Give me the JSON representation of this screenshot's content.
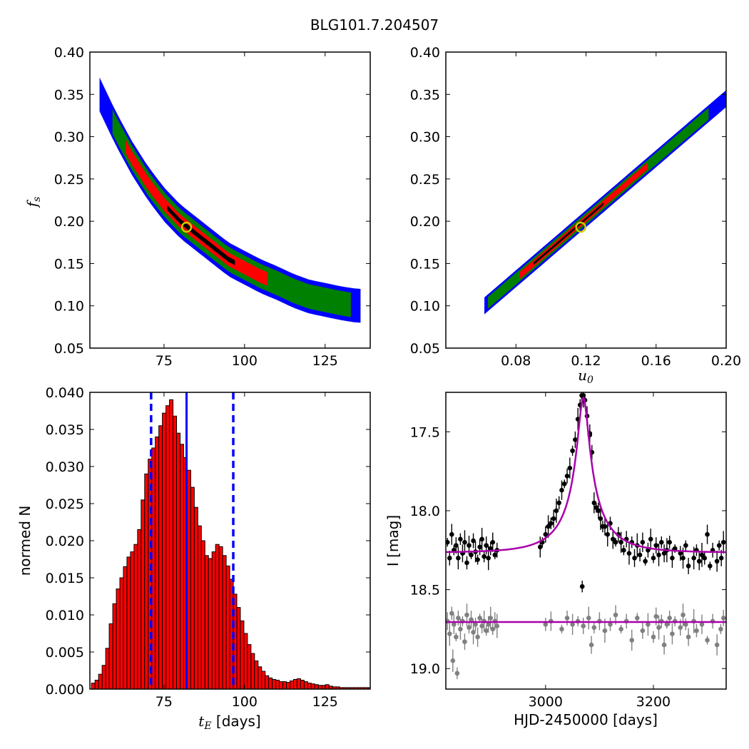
{
  "figure": {
    "title": "BLG101.7.204507"
  },
  "chart_data": [
    {
      "type": "heatmap",
      "xlabel": "",
      "ylabel_main": "f",
      "ylabel_sub": "s",
      "xlim": [
        52,
        139
      ],
      "ylim": [
        0.05,
        0.4
      ],
      "xticks": [
        "75",
        "100",
        "125"
      ],
      "yticks": [
        "0.05",
        "0.10",
        "0.15",
        "0.20",
        "0.25",
        "0.30",
        "0.35",
        "0.40"
      ],
      "colors": {
        "outer": "#0000ff",
        "middle": "#008000",
        "inner": "#ff0000",
        "core": "#000000",
        "best": "#cccc00"
      },
      "best_fit": {
        "x": 82,
        "y": 0.193
      },
      "ridge": [
        [
          55,
          0.35
        ],
        [
          60,
          0.31
        ],
        [
          65,
          0.275
        ],
        [
          70,
          0.245
        ],
        [
          75,
          0.22
        ],
        [
          80,
          0.2
        ],
        [
          85,
          0.185
        ],
        [
          90,
          0.17
        ],
        [
          95,
          0.155
        ],
        [
          100,
          0.145
        ],
        [
          105,
          0.135
        ],
        [
          110,
          0.127
        ],
        [
          115,
          0.118
        ],
        [
          120,
          0.111
        ],
        [
          125,
          0.107
        ],
        [
          130,
          0.103
        ],
        [
          135,
          0.1
        ]
      ],
      "width": {
        "outer": 0.04,
        "middle": 0.029,
        "inner": 0.016,
        "core": 0.006
      },
      "extents": {
        "outer": [
          55,
          136
        ],
        "middle": [
          59,
          133
        ],
        "inner": [
          63,
          107
        ],
        "core": [
          76,
          97
        ]
      }
    },
    {
      "type": "heatmap",
      "xlabel_main": "u",
      "xlabel_sub": "0",
      "ylabel": "",
      "xlim": [
        0.04,
        0.2
      ],
      "ylim": [
        0.05,
        0.4
      ],
      "xticks": [
        "0.08",
        "0.12",
        "0.16",
        "0.20"
      ],
      "yticks": [
        "0.05",
        "0.10",
        "0.15",
        "0.20",
        "0.25",
        "0.30",
        "0.35",
        "0.40"
      ],
      "colors": {
        "outer": "#0000ff",
        "middle": "#008000",
        "inner": "#ff0000",
        "core": "#000000",
        "best": "#cccc00"
      },
      "best_fit": {
        "x": 0.117,
        "y": 0.193
      },
      "ridge": [
        [
          0.062,
          0.1
        ],
        [
          0.2,
          0.345
        ]
      ],
      "width": {
        "outer": 0.02,
        "middle": 0.014,
        "inner": 0.008,
        "core": 0.003
      },
      "extents": {
        "outer": [
          0.062,
          0.2
        ],
        "middle": [
          0.064,
          0.19
        ],
        "inner": [
          0.082,
          0.155
        ],
        "core": [
          0.09,
          0.13
        ]
      }
    },
    {
      "type": "bar",
      "xlabel_main": "t",
      "xlabel_sub": "E",
      "xlabel_suffix": " [days]",
      "ylabel": "normed N",
      "xlim": [
        52,
        139
      ],
      "ylim": [
        0,
        0.04
      ],
      "xticks": [
        "75",
        "100",
        "125"
      ],
      "yticks": [
        "0.000",
        "0.005",
        "0.010",
        "0.015",
        "0.020",
        "0.025",
        "0.030",
        "0.035",
        "0.040"
      ],
      "bin_start": 52.5,
      "bin_width": 1.1,
      "values": [
        0.0008,
        0.0012,
        0.002,
        0.0032,
        0.0055,
        0.0088,
        0.0115,
        0.0135,
        0.015,
        0.0165,
        0.0178,
        0.0185,
        0.0195,
        0.0215,
        0.0255,
        0.029,
        0.031,
        0.0325,
        0.034,
        0.0355,
        0.0372,
        0.0382,
        0.039,
        0.0368,
        0.0345,
        0.033,
        0.0312,
        0.0295,
        0.0272,
        0.0245,
        0.022,
        0.02,
        0.018,
        0.0176,
        0.0185,
        0.0195,
        0.0192,
        0.018,
        0.0166,
        0.0148,
        0.0128,
        0.011,
        0.0092,
        0.0075,
        0.006,
        0.0048,
        0.0038,
        0.003,
        0.0024,
        0.0018,
        0.0015,
        0.0013,
        0.0012,
        0.001,
        0.001,
        0.0009,
        0.0011,
        0.0013,
        0.0014,
        0.0012,
        0.001,
        0.0008,
        0.0007,
        0.0006,
        0.0005,
        0.0005,
        0.0006,
        0.0004,
        0.0003,
        0.0003,
        0.0002,
        0.0002,
        0.0002,
        0.0002,
        0.0002,
        0.0002,
        0.0002,
        0.0002,
        0.0002
      ],
      "bar_color": "#ff0000",
      "median_line": {
        "x": 82,
        "color": "#0000ff"
      },
      "dashed_lines": {
        "x": [
          71,
          96.5
        ],
        "color": "#0000ff"
      }
    },
    {
      "type": "scatter",
      "xlabel": "HJD-2450000 [days]",
      "ylabel": "I [mag]",
      "xlim": [
        2815,
        3335
      ],
      "ylim": [
        19.13,
        17.25
      ],
      "xticks": [
        "3000",
        "3200"
      ],
      "yticks": [
        "17.5",
        "18.0",
        "18.5",
        "19.0"
      ],
      "model_color": "#aa00aa",
      "model": {
        "t0": 3070,
        "u0": 0.117,
        "tE": 82,
        "fs": 0.193,
        "baseline": 18.265
      },
      "residual_baseline": 18.705,
      "series": [
        {
          "name": "",
          "color": "#000000",
          "points": [
            [
              2818,
              18.2
            ],
            [
              2822,
              18.3
            ],
            [
              2826,
              18.15
            ],
            [
              2830,
              18.25
            ],
            [
              2834,
              18.22
            ],
            [
              2838,
              18.3
            ],
            [
              2842,
              18.18
            ],
            [
              2846,
              18.27
            ],
            [
              2850,
              18.2
            ],
            [
              2854,
              18.33
            ],
            [
              2858,
              18.22
            ],
            [
              2862,
              18.28
            ],
            [
              2866,
              18.19
            ],
            [
              2870,
              18.26
            ],
            [
              2874,
              18.31
            ],
            [
              2878,
              18.23
            ],
            [
              2882,
              18.18
            ],
            [
              2886,
              18.29
            ],
            [
              2890,
              18.22
            ],
            [
              2894,
              18.3
            ],
            [
              2898,
              18.24
            ],
            [
              2902,
              18.2
            ],
            [
              2906,
              18.28
            ],
            [
              2910,
              18.25
            ],
            [
              2990,
              18.23
            ],
            [
              2994,
              18.2
            ],
            [
              3000,
              18.15
            ],
            [
              3005,
              18.1
            ],
            [
              3010,
              18.08
            ],
            [
              3015,
              18.05
            ],
            [
              3020,
              18.0
            ],
            [
              3025,
              17.95
            ],
            [
              3030,
              17.87
            ],
            [
              3035,
              17.83
            ],
            [
              3040,
              17.78
            ],
            [
              3045,
              17.73
            ],
            [
              3050,
              17.62
            ],
            [
              3055,
              17.55
            ],
            [
              3060,
              17.42
            ],
            [
              3064,
              17.33
            ],
            [
              3067,
              17.27
            ],
            [
              3070,
              17.27
            ],
            [
              3073,
              17.3
            ],
            [
              3077,
              17.4
            ],
            [
              3082,
              17.52
            ],
            [
              3086,
              17.63
            ],
            [
              3090,
              17.95
            ],
            [
              3094,
              17.98
            ],
            [
              3098,
              18.0
            ],
            [
              3102,
              18.05
            ],
            [
              3106,
              18.1
            ],
            [
              3110,
              18.1
            ],
            [
              3115,
              18.15
            ],
            [
              3120,
              18.08
            ],
            [
              3125,
              18.18
            ],
            [
              3130,
              18.2
            ],
            [
              3135,
              18.15
            ],
            [
              3140,
              18.2
            ],
            [
              3145,
              18.25
            ],
            [
              3150,
              18.18
            ],
            [
              3155,
              18.27
            ],
            [
              3160,
              18.2
            ],
            [
              3165,
              18.3
            ],
            [
              3170,
              18.22
            ],
            [
              3175,
              18.28
            ],
            [
              3180,
              18.2
            ],
            [
              3185,
              18.32
            ],
            [
              3190,
              18.25
            ],
            [
              3195,
              18.18
            ],
            [
              3200,
              18.3
            ],
            [
              3205,
              18.22
            ],
            [
              3210,
              18.28
            ],
            [
              3215,
              18.2
            ],
            [
              3220,
              18.27
            ],
            [
              3225,
              18.25
            ],
            [
              3230,
              18.2
            ],
            [
              3235,
              18.3
            ],
            [
              3240,
              18.24
            ],
            [
              3250,
              18.27
            ],
            [
              3255,
              18.3
            ],
            [
              3260,
              18.22
            ],
            [
              3265,
              18.35
            ],
            [
              3275,
              18.3
            ],
            [
              3280,
              18.25
            ],
            [
              3285,
              18.32
            ],
            [
              3290,
              18.28
            ],
            [
              3295,
              18.3
            ],
            [
              3300,
              18.15
            ],
            [
              3305,
              18.35
            ],
            [
              3310,
              18.25
            ],
            [
              3318,
              18.32
            ],
            [
              3322,
              18.22
            ],
            [
              3326,
              18.3
            ],
            [
              3330,
              18.2
            ]
          ],
          "outliers": [
            [
              3068,
              18.48
            ],
            [
              3082,
              17.51
            ]
          ]
        },
        {
          "name": "",
          "color": "#808080",
          "points": [
            [
              2818,
              18.7
            ],
            [
              2822,
              18.78
            ],
            [
              2826,
              18.65
            ],
            [
              2830,
              18.72
            ],
            [
              2834,
              18.8
            ],
            [
              2838,
              18.68
            ],
            [
              2842,
              18.75
            ],
            [
              2846,
              18.7
            ],
            [
              2850,
              18.83
            ],
            [
              2854,
              18.66
            ],
            [
              2858,
              18.74
            ],
            [
              2862,
              18.69
            ],
            [
              2866,
              18.77
            ],
            [
              2870,
              18.72
            ],
            [
              2874,
              18.8
            ],
            [
              2878,
              18.68
            ],
            [
              2882,
              18.73
            ],
            [
              2886,
              18.7
            ],
            [
              2890,
              18.76
            ],
            [
              2894,
              18.72
            ],
            [
              2898,
              18.68
            ],
            [
              2902,
              18.75
            ],
            [
              2906,
              18.7
            ],
            [
              2910,
              18.73
            ],
            [
              3000,
              18.72
            ],
            [
              3010,
              18.7
            ],
            [
              3030,
              18.75
            ],
            [
              3040,
              18.68
            ],
            [
              3050,
              18.72
            ],
            [
              3060,
              18.7
            ],
            [
              3070,
              18.73
            ],
            [
              3080,
              18.68
            ],
            [
              3090,
              18.74
            ],
            [
              3100,
              18.7
            ],
            [
              3110,
              18.76
            ],
            [
              3120,
              18.72
            ],
            [
              3130,
              18.66
            ],
            [
              3140,
              18.75
            ],
            [
              3150,
              18.7
            ],
            [
              3160,
              18.82
            ],
            [
              3170,
              18.68
            ],
            [
              3180,
              18.76
            ],
            [
              3190,
              18.72
            ],
            [
              3200,
              18.8
            ],
            [
              3205,
              18.67
            ],
            [
              3210,
              18.74
            ],
            [
              3215,
              18.7
            ],
            [
              3220,
              18.85
            ],
            [
              3225,
              18.72
            ],
            [
              3230,
              18.68
            ],
            [
              3235,
              18.78
            ],
            [
              3240,
              18.7
            ],
            [
              3250,
              18.74
            ],
            [
              3255,
              18.66
            ],
            [
              3260,
              18.72
            ],
            [
              3265,
              18.8
            ],
            [
              3275,
              18.7
            ],
            [
              3280,
              18.76
            ],
            [
              3290,
              18.72
            ],
            [
              3300,
              18.82
            ],
            [
              3310,
              18.7
            ],
            [
              3318,
              18.85
            ],
            [
              3325,
              18.75
            ],
            [
              3330,
              18.68
            ]
          ],
          "outliers": [
            [
              2828,
              18.95
            ],
            [
              2836,
              19.03
            ],
            [
              3085,
              18.85
            ]
          ]
        }
      ]
    }
  ]
}
